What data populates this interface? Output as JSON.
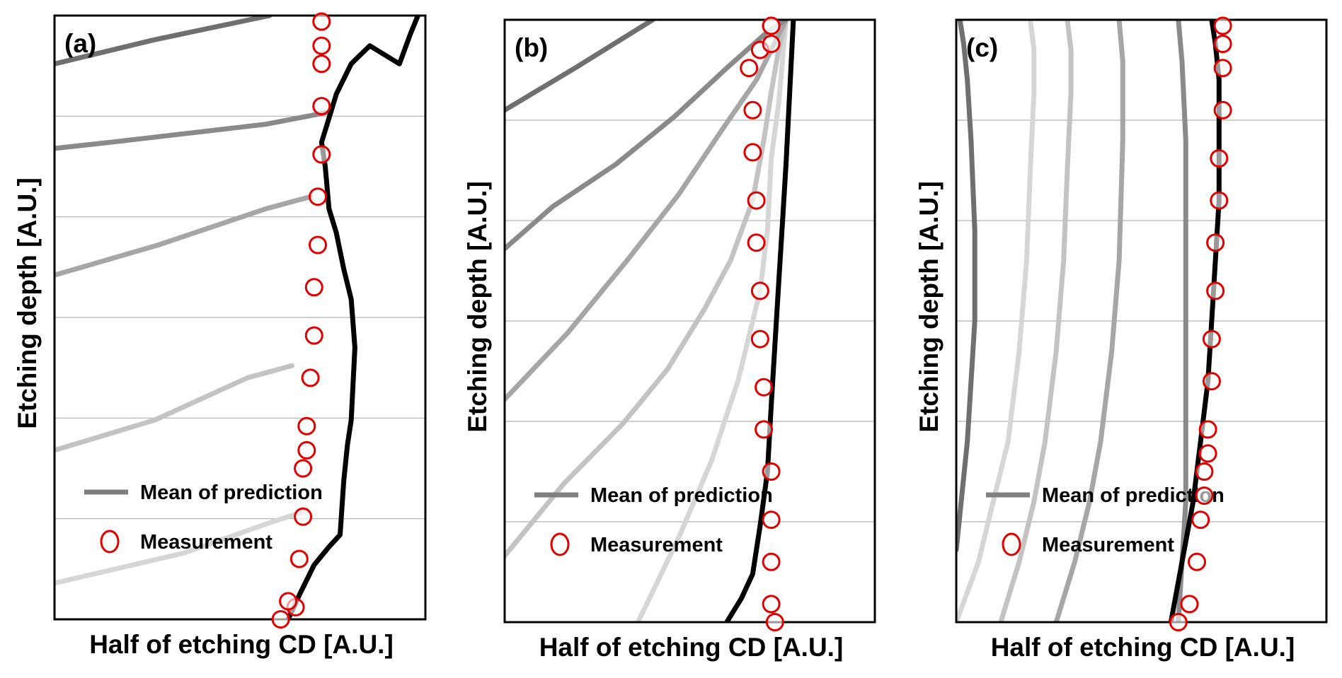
{
  "chart_data": [
    {
      "type": "line",
      "panel_label": "(a)",
      "xlabel": "Half of etching CD [A.U.]",
      "ylabel": "Etching depth [A.U.]",
      "xlim": [
        0,
        1
      ],
      "ylim": [
        0,
        1
      ],
      "grid": "horizontal",
      "legend": {
        "placement": "bottom-left",
        "entries": [
          "Mean of prediction",
          "Measurement"
        ]
      },
      "measurement": {
        "x": [
          0.72,
          0.72,
          0.72,
          0.72,
          0.72,
          0.71,
          0.71,
          0.7,
          0.7,
          0.69,
          0.68,
          0.68,
          0.67,
          0.67,
          0.66,
          0.65,
          0.63,
          0.61
        ],
        "y": [
          0.99,
          0.95,
          0.92,
          0.85,
          0.77,
          0.7,
          0.62,
          0.55,
          0.47,
          0.4,
          0.32,
          0.28,
          0.25,
          0.17,
          0.1,
          0.02,
          0.03,
          0.0
        ]
      },
      "prediction_mean": {
        "x": [
          0.63,
          0.66,
          0.7,
          0.74,
          0.77,
          0.78,
          0.79,
          0.8,
          0.81,
          0.8,
          0.78,
          0.76,
          0.74,
          0.73,
          0.72,
          0.74,
          0.76,
          0.8,
          0.85,
          0.93,
          0.96,
          0.98
        ],
        "y": [
          0.0,
          0.04,
          0.09,
          0.12,
          0.14,
          0.23,
          0.29,
          0.33,
          0.45,
          0.53,
          0.58,
          0.64,
          0.68,
          0.75,
          0.79,
          0.83,
          0.87,
          0.92,
          0.95,
          0.92,
          0.97,
          1.0
        ]
      },
      "sample_predictions": [
        {
          "x": [
            0.0,
            0.35,
            0.58,
            0.68
          ],
          "y": [
            0.06,
            0.11,
            0.16,
            0.18
          ]
        },
        {
          "x": [
            0.0,
            0.27,
            0.52,
            0.64
          ],
          "y": [
            0.28,
            0.33,
            0.4,
            0.42
          ]
        },
        {
          "x": [
            0.0,
            0.28,
            0.57,
            0.69
          ],
          "y": [
            0.57,
            0.62,
            0.68,
            0.7
          ]
        },
        {
          "x": [
            0.0,
            0.15,
            0.57,
            0.74
          ],
          "y": [
            0.78,
            0.79,
            0.82,
            0.84
          ]
        },
        {
          "x": [
            0.0,
            0.27,
            0.58
          ],
          "y": [
            0.92,
            0.96,
            1.0
          ]
        }
      ]
    },
    {
      "type": "line",
      "panel_label": "(b)",
      "xlabel": "Half of etching CD [A.U.]",
      "ylabel": "Etching depth [A.U.]",
      "xlim": [
        0,
        1
      ],
      "ylim": [
        0,
        1
      ],
      "grid": "horizontal",
      "legend": {
        "placement": "bottom-left",
        "entries": [
          "Mean of prediction",
          "Measurement"
        ]
      },
      "measurement": {
        "x": [
          0.72,
          0.69,
          0.66,
          0.67,
          0.67,
          0.68,
          0.68,
          0.69,
          0.69,
          0.7,
          0.7,
          0.72,
          0.72,
          0.72,
          0.72,
          0.73,
          0.72,
          0.72
        ],
        "y": [
          0.99,
          0.95,
          0.92,
          0.85,
          0.78,
          0.7,
          0.63,
          0.55,
          0.47,
          0.39,
          0.32,
          0.25,
          0.17,
          0.1,
          0.03,
          0.0,
          0.96,
          0.99
        ]
      },
      "prediction_mean": {
        "x": [
          0.6,
          0.64,
          0.67,
          0.69,
          0.71,
          0.72,
          0.73,
          0.74,
          0.75,
          0.76,
          0.77,
          0.78
        ],
        "y": [
          0.0,
          0.04,
          0.08,
          0.16,
          0.25,
          0.36,
          0.46,
          0.56,
          0.66,
          0.76,
          0.88,
          1.0
        ]
      },
      "sample_predictions": [
        {
          "x": [
            0.36,
            0.47,
            0.56,
            0.63,
            0.69,
            0.71,
            0.72,
            0.74,
            0.75,
            0.76
          ],
          "y": [
            0.0,
            0.14,
            0.27,
            0.4,
            0.55,
            0.65,
            0.77,
            0.86,
            0.93,
            1.0
          ]
        },
        {
          "x": [
            0.0,
            0.16,
            0.32,
            0.44,
            0.54,
            0.61,
            0.67,
            0.7,
            0.72,
            0.74,
            0.76
          ],
          "y": [
            0.11,
            0.23,
            0.33,
            0.42,
            0.52,
            0.6,
            0.7,
            0.8,
            0.88,
            0.95,
            1.0
          ]
        },
        {
          "x": [
            0.0,
            0.17,
            0.33,
            0.47,
            0.59,
            0.68,
            0.76
          ],
          "y": [
            0.37,
            0.48,
            0.6,
            0.71,
            0.82,
            0.9,
            1.0
          ]
        },
        {
          "x": [
            0.0,
            0.13,
            0.3,
            0.46,
            0.6,
            0.71,
            0.76
          ],
          "y": [
            0.62,
            0.69,
            0.76,
            0.84,
            0.92,
            0.98,
            1.0
          ]
        },
        {
          "x": [
            0.0,
            0.19,
            0.4
          ],
          "y": [
            0.85,
            0.92,
            1.0
          ]
        }
      ]
    },
    {
      "type": "line",
      "panel_label": "(c)",
      "xlabel": "Half of etching CD [A.U.]",
      "ylabel": "Etching depth [A.U.]",
      "xlim": [
        0,
        1
      ],
      "ylim": [
        0,
        1
      ],
      "grid": "horizontal",
      "legend": {
        "placement": "bottom-left",
        "entries": [
          "Mean of prediction",
          "Measurement"
        ]
      },
      "measurement": {
        "x": [
          0.6,
          0.63,
          0.65,
          0.66,
          0.67,
          0.67,
          0.68,
          0.68,
          0.69,
          0.69,
          0.7,
          0.7,
          0.71,
          0.71,
          0.72,
          0.72,
          0.72,
          0.72
        ],
        "y": [
          0.0,
          0.03,
          0.1,
          0.17,
          0.21,
          0.25,
          0.28,
          0.32,
          0.4,
          0.47,
          0.55,
          0.63,
          0.7,
          0.77,
          0.85,
          0.92,
          0.96,
          0.99
        ]
      },
      "prediction_mean": {
        "x": [
          0.58,
          0.61,
          0.64,
          0.66,
          0.68,
          0.69,
          0.7,
          0.71,
          0.71,
          0.71,
          0.7,
          0.69
        ],
        "y": [
          0.0,
          0.1,
          0.2,
          0.3,
          0.4,
          0.5,
          0.6,
          0.7,
          0.8,
          0.9,
          0.96,
          1.0
        ]
      },
      "sample_predictions": [
        {
          "x": [
            0.0,
            0.06,
            0.1,
            0.14,
            0.17,
            0.19,
            0.2,
            0.21,
            0.21,
            0.2
          ],
          "y": [
            0.0,
            0.1,
            0.2,
            0.3,
            0.45,
            0.6,
            0.75,
            0.88,
            0.95,
            1.0
          ]
        },
        {
          "x": [
            0.12,
            0.17,
            0.21,
            0.24,
            0.27,
            0.29,
            0.3,
            0.31,
            0.31,
            0.3
          ],
          "y": [
            0.0,
            0.1,
            0.2,
            0.3,
            0.45,
            0.6,
            0.75,
            0.88,
            0.95,
            1.0
          ]
        },
        {
          "x": [
            0.27,
            0.32,
            0.36,
            0.39,
            0.42,
            0.44,
            0.45,
            0.45,
            0.44
          ],
          "y": [
            0.0,
            0.1,
            0.2,
            0.3,
            0.45,
            0.6,
            0.8,
            0.93,
            1.0
          ]
        },
        {
          "x": [
            0.6,
            0.61,
            0.62,
            0.62,
            0.62,
            0.62,
            0.62,
            0.61,
            0.6
          ],
          "y": [
            0.0,
            0.1,
            0.2,
            0.3,
            0.45,
            0.6,
            0.8,
            0.93,
            1.0
          ]
        },
        {
          "x": [
            0.0,
            0.03,
            0.05,
            0.05,
            0.04,
            0.03,
            0.02,
            0.01
          ],
          "y": [
            0.12,
            0.3,
            0.5,
            0.65,
            0.8,
            0.9,
            0.96,
            1.0
          ]
        }
      ]
    }
  ],
  "colors": {
    "mean_line": "#000000",
    "measurement_marker": "#e00000",
    "grid": "#b0b0b0",
    "samples": [
      "#d6d6d6",
      "#c3c3c3",
      "#a6a6a6",
      "#8a8a8a",
      "#6f6f6f"
    ],
    "legend_line": "#7f7f7f"
  }
}
